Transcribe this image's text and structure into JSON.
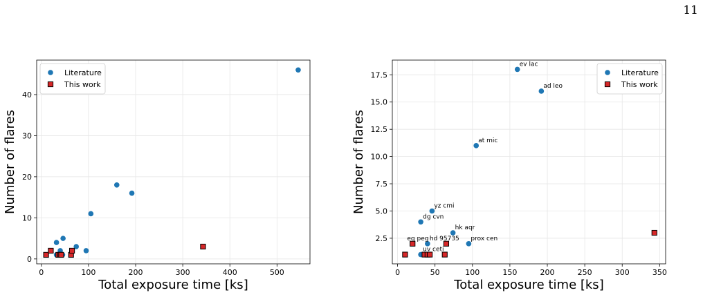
{
  "page_number": "11",
  "colors": {
    "literature": "#1f77b4",
    "this_work": "#d62728"
  },
  "chart_data": [
    {
      "type": "scatter",
      "title": "",
      "xlabel": "Total exposure time [ks]",
      "ylabel": "Number of flares",
      "xlim": [
        -10,
        570
      ],
      "ylim": [
        -1.2,
        48.4
      ],
      "xticks": [
        0,
        100,
        200,
        300,
        400,
        500
      ],
      "yticks": [
        0,
        10,
        20,
        30,
        40
      ],
      "grid": true,
      "legend_position": "top-left",
      "series": [
        {
          "name": "Literature",
          "marker": "circle",
          "points": [
            [
              32,
              1
            ],
            [
              38,
              1
            ],
            [
              45,
              1
            ],
            [
              40,
              2
            ],
            [
              32,
              4
            ],
            [
              46,
              5
            ],
            [
              74,
              3
            ],
            [
              95,
              2
            ],
            [
              105,
              11
            ],
            [
              160,
              18
            ],
            [
              192,
              16
            ],
            [
              545,
              46
            ]
          ]
        },
        {
          "name": "This work",
          "marker": "square",
          "points": [
            [
              10,
              1
            ],
            [
              20,
              2
            ],
            [
              36,
              1
            ],
            [
              40,
              1
            ],
            [
              42,
              1
            ],
            [
              63,
              1
            ],
            [
              65,
              2
            ],
            [
              343,
              3
            ]
          ]
        }
      ]
    },
    {
      "type": "scatter",
      "title": "",
      "xlabel": "Total exposure time [ks]",
      "ylabel": "Number of flares",
      "xlim": [
        -7,
        358
      ],
      "ylim": [
        0.15,
        18.85
      ],
      "xticks": [
        0,
        50,
        100,
        150,
        200,
        250,
        300,
        350
      ],
      "yticks": [
        2.5,
        5.0,
        7.5,
        10.0,
        12.5,
        15.0,
        17.5
      ],
      "grid": true,
      "legend_position": "top-right",
      "series": [
        {
          "name": "Literature",
          "marker": "circle",
          "points": [
            [
              31,
              1
            ],
            [
              40,
              2
            ],
            [
              31,
              4
            ],
            [
              46,
              5
            ],
            [
              74,
              3
            ],
            [
              95,
              2
            ],
            [
              105,
              11
            ],
            [
              160,
              18
            ],
            [
              192,
              16
            ]
          ]
        },
        {
          "name": "This work",
          "marker": "square",
          "points": [
            [
              10,
              1
            ],
            [
              20,
              2
            ],
            [
              36,
              1
            ],
            [
              40,
              1
            ],
            [
              43,
              1
            ],
            [
              63,
              1
            ],
            [
              65,
              2
            ],
            [
              343,
              3
            ]
          ]
        }
      ],
      "annotations": [
        {
          "text": "ev lac",
          "x": 160,
          "y": 18
        },
        {
          "text": "ad leo",
          "x": 192,
          "y": 16
        },
        {
          "text": "at mic",
          "x": 105,
          "y": 11
        },
        {
          "text": "yz cmi",
          "x": 46,
          "y": 5
        },
        {
          "text": "dg cvn",
          "x": 31,
          "y": 4
        },
        {
          "text": "hk aqr",
          "x": 74,
          "y": 3
        },
        {
          "text": "eq peg",
          "x": 10,
          "y": 2
        },
        {
          "text": "hd 95735",
          "x": 40,
          "y": 2
        },
        {
          "text": "prox cen",
          "x": 95,
          "y": 2
        },
        {
          "text": "uv ceti",
          "x": 31,
          "y": 1
        }
      ]
    }
  ]
}
